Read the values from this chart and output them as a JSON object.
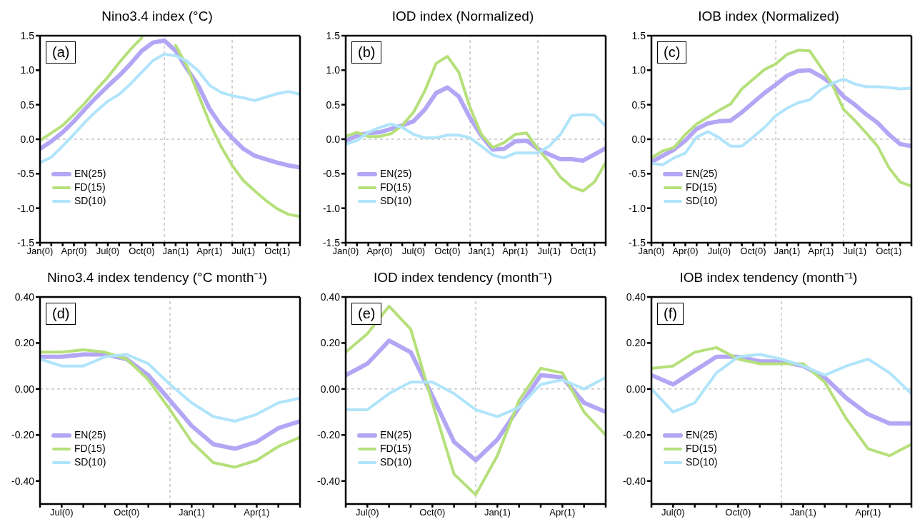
{
  "chart_data": [
    {
      "type": "line",
      "title": "Nino3.4 index (°C)",
      "annotations": [
        "(a)"
      ],
      "legend": "bottom left",
      "categories": [
        "Jan(0)",
        null,
        null,
        "Apr(0)",
        null,
        null,
        "Jul(0)",
        null,
        null,
        "Oct(0)",
        null,
        null,
        "Jan(1)",
        null,
        null,
        "Apr(1)",
        null,
        null,
        "Jul(1)",
        null,
        null,
        "Oct(1)",
        null,
        null
      ],
      "series": [
        {
          "name": "EN(25)",
          "color": "#b3a6f5",
          "values": [
            -0.14,
            -0.03,
            0.1,
            0.26,
            0.44,
            0.61,
            0.77,
            0.92,
            1.09,
            1.28,
            1.4,
            1.43,
            1.28,
            1.02,
            0.78,
            0.44,
            0.2,
            0.02,
            -0.14,
            -0.24,
            -0.29,
            -0.34,
            -0.38,
            -0.41
          ]
        },
        {
          "name": "FD(15)",
          "color": "#b5e07a",
          "values": [
            -0.02,
            0.09,
            0.2,
            0.36,
            0.53,
            0.72,
            0.9,
            1.11,
            1.3,
            1.47,
            null,
            null,
            1.36,
            1.06,
            0.65,
            0.24,
            -0.1,
            -0.38,
            -0.6,
            -0.75,
            -0.89,
            -1.01,
            -1.09,
            -1.12
          ]
        },
        {
          "name": "SD(10)",
          "color": "#b0e4fb",
          "values": [
            -0.34,
            -0.26,
            -0.1,
            0.07,
            0.25,
            0.41,
            0.55,
            0.65,
            0.8,
            0.97,
            1.14,
            1.23,
            1.21,
            1.13,
            0.99,
            0.78,
            0.68,
            0.63,
            0.6,
            0.56,
            0.61,
            0.66,
            0.69,
            0.65
          ]
        }
      ],
      "ylim": [
        -1.5,
        1.5
      ],
      "yticks": [
        {
          "value": -1.5,
          "label": "-1.5"
        },
        {
          "value": -1,
          "label": "-1.0"
        },
        {
          "value": -0.5,
          "label": "-0.5"
        },
        {
          "value": 0,
          "label": "0.0"
        },
        {
          "value": 0.5,
          "label": "0.5"
        },
        {
          "value": 1,
          "label": "1.0"
        },
        {
          "value": 1.5,
          "label": "1.5"
        }
      ],
      "ref_lines": [
        {
          "axis": "y",
          "value": 0,
          "color": "#aaaaaa",
          "line_style": "dashed"
        }
      ]
    },
    {
      "type": "line",
      "title": "IOD index (Normalized)",
      "annotations": [
        "(b)"
      ],
      "legend": "bottom left",
      "categories": [
        "Jan(0)",
        null,
        null,
        "Apr(0)",
        null,
        null,
        "Jul(0)",
        null,
        null,
        "Oct(0)",
        null,
        null,
        "Jan(1)",
        null,
        null,
        "Apr(1)",
        null,
        null,
        "Jul(1)",
        null,
        null,
        "Oct(1)",
        null,
        null
      ],
      "series": [
        {
          "name": "EN(25)",
          "color": "#b3a6f5",
          "values": [
            -0.02,
            0.05,
            0.09,
            0.1,
            0.15,
            0.2,
            0.26,
            0.43,
            0.67,
            0.75,
            0.62,
            0.31,
            0.05,
            -0.15,
            -0.14,
            -0.03,
            -0.02,
            -0.14,
            -0.22,
            -0.29,
            -0.29,
            -0.31,
            -0.22,
            -0.13
          ]
        },
        {
          "name": "FD(15)",
          "color": "#b5e07a",
          "values": [
            0.04,
            0.1,
            0.04,
            0.04,
            0.08,
            0.2,
            0.39,
            0.7,
            1.1,
            1.2,
            0.97,
            0.46,
            0.07,
            -0.12,
            -0.05,
            0.07,
            0.09,
            -0.14,
            -0.33,
            -0.55,
            -0.69,
            -0.75,
            -0.62,
            -0.34
          ]
        },
        {
          "name": "SD(10)",
          "color": "#b0e4fb",
          "values": [
            -0.07,
            -0.02,
            0.1,
            0.17,
            0.22,
            0.17,
            0.07,
            0.02,
            0.02,
            0.06,
            0.06,
            0.02,
            -0.1,
            -0.23,
            -0.27,
            -0.2,
            -0.2,
            -0.2,
            -0.1,
            0.07,
            0.34,
            0.36,
            0.35,
            0.19
          ]
        }
      ],
      "ylim": [
        -1.5,
        1.5
      ],
      "yticks": [
        {
          "value": -1.5,
          "label": "-1.5"
        },
        {
          "value": -1,
          "label": "-1.0"
        },
        {
          "value": -0.5,
          "label": "-0.5"
        },
        {
          "value": 0,
          "label": "0.0"
        },
        {
          "value": 0.5,
          "label": "0.5"
        },
        {
          "value": 1,
          "label": "1.0"
        },
        {
          "value": 1.5,
          "label": "1.5"
        }
      ],
      "ref_lines": [
        {
          "axis": "y",
          "value": 0,
          "color": "#aaaaaa",
          "line_style": "dashed"
        }
      ]
    },
    {
      "type": "line",
      "title": "IOB index (Normalized)",
      "annotations": [
        "(c)"
      ],
      "legend": "bottom left",
      "categories": [
        "Jan(0)",
        null,
        null,
        "Apr(0)",
        null,
        null,
        "Jul(0)",
        null,
        null,
        "Oct(0)",
        null,
        null,
        "Jan(1)",
        null,
        null,
        "Apr(1)",
        null,
        null,
        "Jul(1)",
        null,
        null,
        "Oct(1)",
        null,
        null
      ],
      "series": [
        {
          "name": "EN(25)",
          "color": "#b3a6f5",
          "values": [
            -0.33,
            -0.24,
            -0.15,
            -0.02,
            0.15,
            0.23,
            0.26,
            0.27,
            0.39,
            0.53,
            0.67,
            0.79,
            0.92,
            0.99,
            1.0,
            0.91,
            0.8,
            0.62,
            0.5,
            0.36,
            0.24,
            0.07,
            -0.07,
            -0.1
          ]
        },
        {
          "name": "FD(15)",
          "color": "#b5e07a",
          "values": [
            -0.27,
            -0.17,
            -0.12,
            0.07,
            0.22,
            0.32,
            0.42,
            0.51,
            0.73,
            0.87,
            1.01,
            1.09,
            1.23,
            1.29,
            1.28,
            1.04,
            0.79,
            0.43,
            0.27,
            0.09,
            -0.1,
            -0.41,
            -0.62,
            -0.68
          ]
        },
        {
          "name": "SD(10)",
          "color": "#b0e4fb",
          "values": [
            -0.35,
            -0.37,
            -0.27,
            -0.2,
            0.03,
            0.11,
            0.02,
            -0.1,
            -0.1,
            0.03,
            0.17,
            0.34,
            0.45,
            0.53,
            0.57,
            0.72,
            0.81,
            0.87,
            0.8,
            0.76,
            0.76,
            0.75,
            0.73,
            0.74
          ]
        }
      ],
      "ylim": [
        -1.5,
        1.5
      ],
      "yticks": [
        {
          "value": -1.5,
          "label": "-1.5"
        },
        {
          "value": -1,
          "label": "-1.0"
        },
        {
          "value": -0.5,
          "label": "-0.5"
        },
        {
          "value": 0,
          "label": "0.0"
        },
        {
          "value": 0.5,
          "label": "0.5"
        },
        {
          "value": 1,
          "label": "1.0"
        },
        {
          "value": 1.5,
          "label": "1.5"
        }
      ],
      "ref_lines": [
        {
          "axis": "y",
          "value": 0,
          "color": "#aaaaaa",
          "line_style": "dashed"
        }
      ]
    },
    {
      "type": "line",
      "title": "Nino3.4 index tendency (°C month⁻¹)",
      "annotations": [
        "(d)"
      ],
      "legend": "bottom left",
      "categories": [
        null,
        "Jul(0)",
        null,
        null,
        "Oct(0)",
        null,
        null,
        "Jan(1)",
        null,
        null,
        "Apr(1)",
        null,
        null
      ],
      "series": [
        {
          "name": "EN(25)",
          "color": "#b3a6f5",
          "values": [
            0.14,
            0.14,
            0.15,
            0.15,
            0.13,
            0.06,
            -0.05,
            -0.16,
            -0.24,
            -0.26,
            -0.23,
            -0.17,
            -0.14
          ]
        },
        {
          "name": "FD(15)",
          "color": "#b5e07a",
          "values": [
            0.16,
            0.16,
            0.17,
            0.16,
            0.13,
            0.04,
            -0.09,
            -0.23,
            -0.32,
            -0.34,
            -0.31,
            -0.25,
            -0.21
          ]
        },
        {
          "name": "SD(10)",
          "color": "#b0e4fb",
          "values": [
            0.13,
            0.1,
            0.1,
            0.14,
            0.15,
            0.11,
            0.02,
            -0.06,
            -0.12,
            -0.14,
            -0.11,
            -0.06,
            -0.04
          ]
        }
      ],
      "ylim": [
        -0.5,
        0.4
      ],
      "yticks": [
        {
          "value": -0.4,
          "label": "-0.40"
        },
        {
          "value": -0.2,
          "label": "-0.20"
        },
        {
          "value": 0,
          "label": "0.00"
        },
        {
          "value": 0.2,
          "label": "0.20"
        },
        {
          "value": 0.4,
          "label": "0.40"
        }
      ],
      "ref_lines": [
        {
          "axis": "y",
          "value": 0,
          "color": "#aaaaaa",
          "line_style": "dashed"
        }
      ]
    },
    {
      "type": "line",
      "title": "IOD index tendency (month⁻¹)",
      "annotations": [
        "(e)"
      ],
      "legend": "bottom left",
      "categories": [
        null,
        "Jul(0)",
        null,
        null,
        "Oct(0)",
        null,
        null,
        "Jan(1)",
        null,
        null,
        "Apr(1)",
        null,
        null
      ],
      "series": [
        {
          "name": "EN(25)",
          "color": "#b3a6f5",
          "values": [
            0.06,
            0.11,
            0.21,
            0.16,
            -0.03,
            -0.23,
            -0.31,
            -0.22,
            -0.08,
            0.06,
            0.05,
            -0.06,
            -0.1
          ]
        },
        {
          "name": "FD(15)",
          "color": "#b5e07a",
          "values": [
            0.16,
            0.24,
            0.36,
            0.26,
            -0.06,
            -0.37,
            -0.46,
            -0.29,
            -0.05,
            0.09,
            0.07,
            -0.1,
            -0.2
          ]
        },
        {
          "name": "SD(10)",
          "color": "#b0e4fb",
          "values": [
            -0.09,
            -0.09,
            -0.02,
            0.03,
            0.03,
            -0.02,
            -0.09,
            -0.12,
            -0.08,
            0.02,
            0.04,
            0.0,
            0.05
          ]
        }
      ],
      "ylim": [
        -0.5,
        0.4
      ],
      "yticks": [
        {
          "value": -0.4,
          "label": "-0.40"
        },
        {
          "value": -0.2,
          "label": "-0.20"
        },
        {
          "value": 0,
          "label": "0.00"
        },
        {
          "value": 0.2,
          "label": "0.20"
        },
        {
          "value": 0.4,
          "label": "0.40"
        }
      ],
      "ref_lines": [
        {
          "axis": "y",
          "value": 0,
          "color": "#aaaaaa",
          "line_style": "dashed"
        }
      ]
    },
    {
      "type": "line",
      "title": "IOB index tendency (month⁻¹)",
      "annotations": [
        "(f)"
      ],
      "legend": "bottom left",
      "categories": [
        null,
        "Jul(0)",
        null,
        null,
        "Oct(0)",
        null,
        null,
        "Jan(1)",
        null,
        null,
        "Apr(1)",
        null,
        null
      ],
      "series": [
        {
          "name": "EN(25)",
          "color": "#b3a6f5",
          "values": [
            0.06,
            0.02,
            0.08,
            0.14,
            0.14,
            0.12,
            0.12,
            0.1,
            0.05,
            -0.04,
            -0.11,
            -0.15,
            -0.15
          ]
        },
        {
          "name": "FD(15)",
          "color": "#b5e07a",
          "values": [
            0.09,
            0.1,
            0.16,
            0.18,
            0.13,
            0.11,
            0.11,
            0.11,
            0.03,
            -0.13,
            -0.26,
            -0.29,
            -0.24
          ]
        },
        {
          "name": "SD(10)",
          "color": "#b0e4fb",
          "values": [
            0.0,
            -0.1,
            -0.06,
            0.07,
            0.14,
            0.15,
            0.13,
            0.1,
            0.06,
            0.1,
            0.13,
            0.07,
            -0.02
          ]
        }
      ],
      "ylim": [
        -0.5,
        0.4
      ],
      "yticks": [
        {
          "value": -0.4,
          "label": "-0.40"
        },
        {
          "value": -0.2,
          "label": "-0.20"
        },
        {
          "value": 0,
          "label": "0.00"
        },
        {
          "value": 0.2,
          "label": "0.20"
        },
        {
          "value": 0.4,
          "label": "0.40"
        }
      ],
      "ref_lines": [
        {
          "axis": "y",
          "value": 0,
          "color": "#aaaaaa",
          "line_style": "dashed"
        }
      ]
    }
  ]
}
